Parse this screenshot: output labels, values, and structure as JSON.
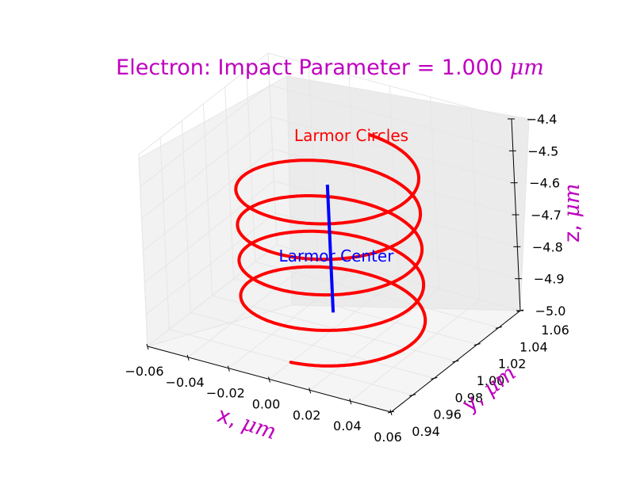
{
  "chart_data": {
    "type": "line",
    "title": "Electron: Impact Parameter = 1.000",
    "title_unit": "μm",
    "title_color": "#bf00bf",
    "projection": "3d",
    "xlabel": "x, ",
    "ylabel": "y, ",
    "zlabel": "z, ",
    "axis_unit": "μm",
    "label_color": "#bf00bf",
    "xlim": [
      -0.06,
      0.06
    ],
    "ylim": [
      0.94,
      1.06
    ],
    "zlim": [
      -5.0,
      -4.4
    ],
    "xticks": [
      "−0.06",
      "−0.04",
      "−0.02",
      "0.00",
      "0.02",
      "0.04",
      "0.06"
    ],
    "yticks": [
      "0.94",
      "0.96",
      "0.98",
      "1.00",
      "1.02",
      "1.04",
      "1.06"
    ],
    "zticks": [
      "−5.0",
      "−4.9",
      "−4.8",
      "−4.7",
      "−4.6",
      "−4.5",
      "−4.4"
    ],
    "grid": true,
    "series": [
      {
        "label_text": "Larmor Circles",
        "color": "#ff0000",
        "kind": "helix",
        "center_x": 0.0,
        "center_y": 1.0,
        "radius": 0.04,
        "z_start": -5.0,
        "z_end": -4.5,
        "turns": 4.5
      },
      {
        "label_text": "Larmor Center",
        "color": "#0000ff",
        "kind": "segment",
        "x": [
          0.0,
          0.0
        ],
        "y": [
          1.0,
          1.0
        ],
        "z": [
          -4.95,
          -4.55
        ]
      }
    ]
  }
}
